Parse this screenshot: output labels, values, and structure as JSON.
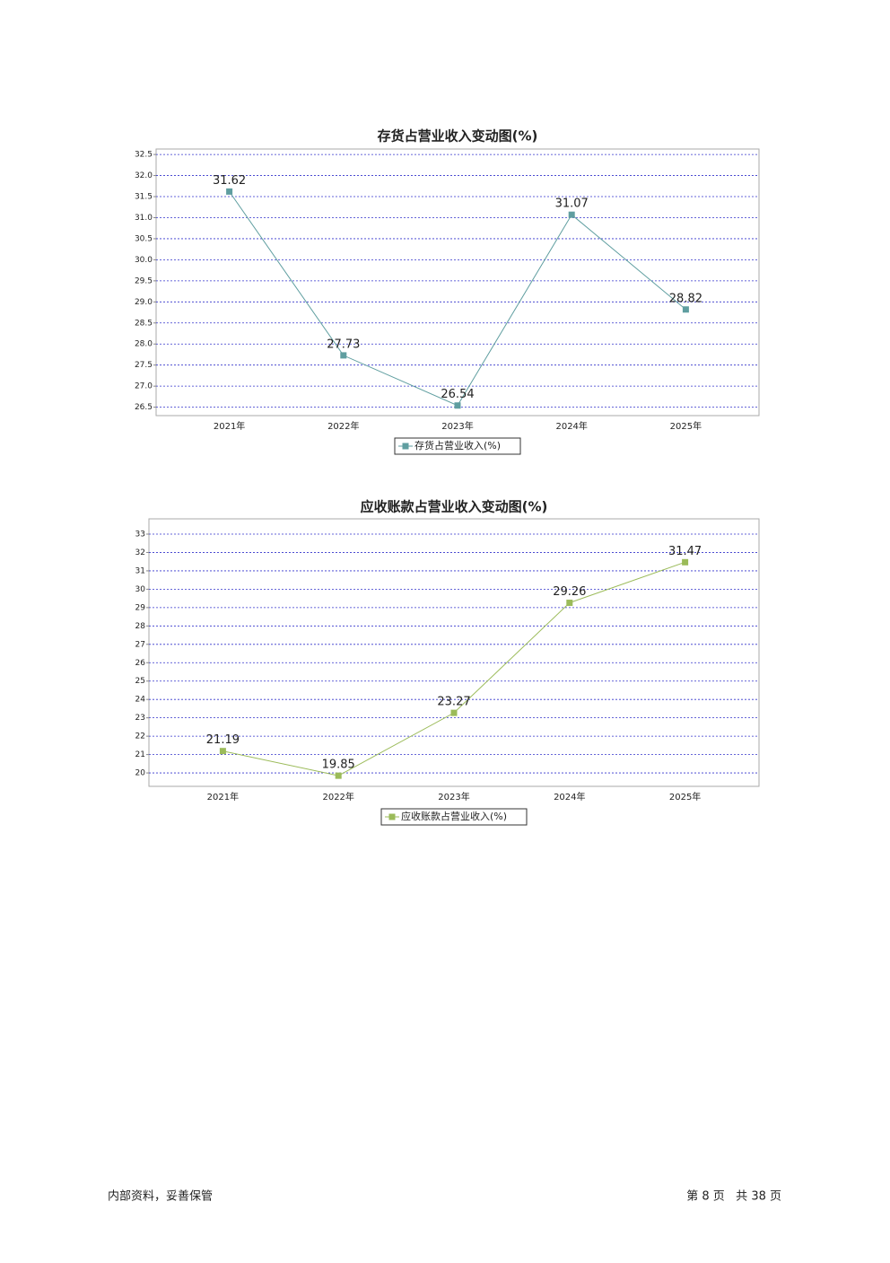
{
  "chart_data": [
    {
      "type": "line",
      "title": "存货占营业收入变动图(%)",
      "categories": [
        "2021年",
        "2022年",
        "2023年",
        "2024年",
        "2025年"
      ],
      "series": [
        {
          "name": "存货占营业收入(%)",
          "color": "#5f9ea0",
          "values": [
            31.62,
            27.73,
            26.54,
            31.07,
            28.82
          ]
        }
      ],
      "ylim": [
        26.3,
        32.63
      ],
      "yticks": [
        26.5,
        {
          "value": 27,
          "label": "27.0"
        },
        27.5,
        {
          "value": 28,
          "label": "28.0"
        },
        28.5,
        {
          "value": 29,
          "label": "29.0"
        },
        29.5,
        {
          "value": 30,
          "label": "30.0"
        },
        30.5,
        {
          "value": 31,
          "label": "31.0"
        },
        31.5,
        {
          "value": 32,
          "label": "32.0"
        },
        32.5
      ],
      "grid": true,
      "legend": "bottom"
    },
    {
      "type": "line",
      "title": "应收账款占营业收入变动图(%)",
      "categories": [
        "2021年",
        "2022年",
        "2023年",
        "2024年",
        "2025年"
      ],
      "series": [
        {
          "name": "应收账款占营业收入(%)",
          "color": "#9bbb59",
          "values": [
            21.19,
            19.85,
            23.27,
            29.26,
            31.47
          ]
        }
      ],
      "ylim": [
        19.27,
        33.83
      ],
      "yticks": [
        20,
        21,
        22,
        23,
        24,
        25,
        26,
        27,
        28,
        29,
        30,
        31,
        32,
        33
      ],
      "grid": true,
      "legend": "bottom"
    }
  ],
  "footer": {
    "left": "内部资料，妥善保管",
    "right": "第 8 页   共 38 页"
  }
}
